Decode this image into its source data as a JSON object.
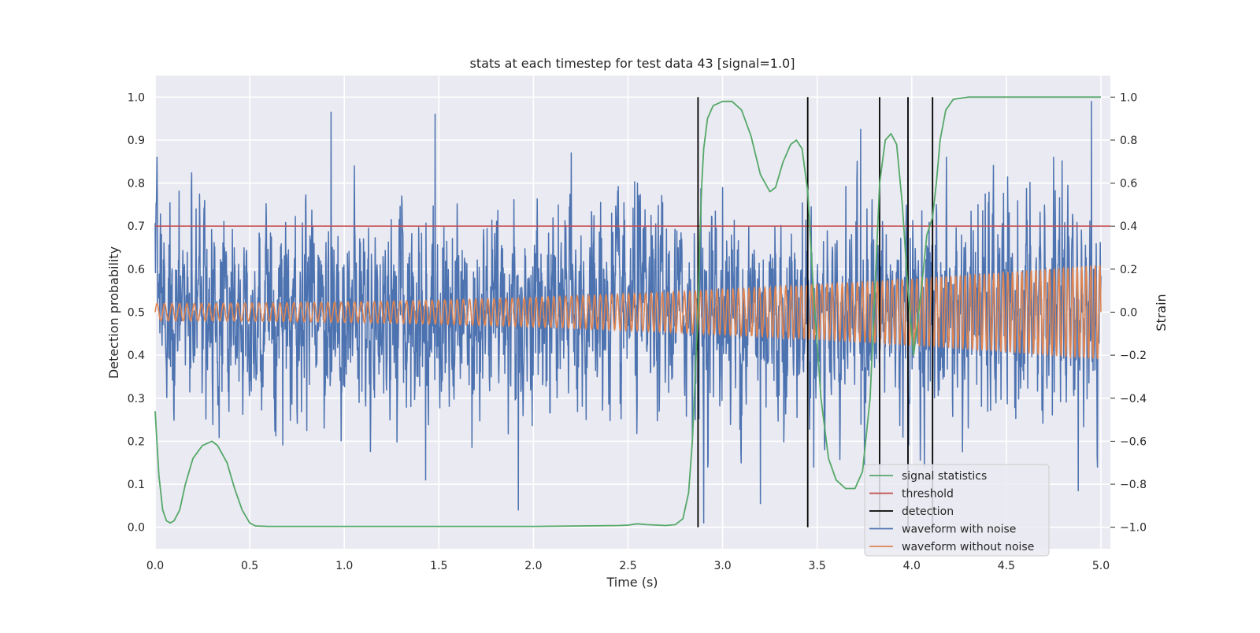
{
  "chart_data": {
    "type": "line",
    "title": "stats at each timestep for test data 43 [signal=1.0]",
    "xlabel": "Time (s)",
    "ylabel": "Detection probability",
    "y2label": "Strain",
    "xlim": [
      0.0,
      5.05
    ],
    "ylim": [
      -0.05,
      1.05
    ],
    "y2lim": [
      -1.1,
      1.1
    ],
    "x_ticks": [
      "0.0",
      "0.5",
      "1.0",
      "1.5",
      "2.0",
      "2.5",
      "3.0",
      "3.5",
      "4.0",
      "4.5",
      "5.0"
    ],
    "y_ticks": [
      "0.0",
      "0.1",
      "0.2",
      "0.3",
      "0.4",
      "0.5",
      "0.6",
      "0.7",
      "0.8",
      "0.9",
      "1.0"
    ],
    "y2_ticks": [
      "−1.0",
      "−0.8",
      "−0.6",
      "−0.4",
      "−0.2",
      "0.0",
      "0.2",
      "0.4",
      "0.6",
      "0.8",
      "1.0"
    ],
    "grid": true,
    "legend_position": "lower-right",
    "threshold": 0.7,
    "detections": [
      2.87,
      3.45,
      3.83,
      3.98,
      4.11
    ],
    "signal_statistics": {
      "x": [
        0.0,
        0.02,
        0.04,
        0.06,
        0.08,
        0.1,
        0.13,
        0.16,
        0.2,
        0.25,
        0.3,
        0.33,
        0.38,
        0.42,
        0.46,
        0.5,
        0.53,
        0.6,
        1.0,
        1.5,
        2.0,
        2.45,
        2.5,
        2.55,
        2.6,
        2.7,
        2.75,
        2.79,
        2.82,
        2.84,
        2.86,
        2.87,
        2.88,
        2.89,
        2.9,
        2.92,
        2.95,
        3.0,
        3.05,
        3.1,
        3.15,
        3.2,
        3.25,
        3.28,
        3.32,
        3.36,
        3.39,
        3.42,
        3.45,
        3.48,
        3.52,
        3.56,
        3.6,
        3.65,
        3.7,
        3.74,
        3.78,
        3.81,
        3.83,
        3.86,
        3.89,
        3.92,
        3.95,
        3.98,
        4.01,
        4.05,
        4.08,
        4.11,
        4.13,
        4.15,
        4.18,
        4.22,
        4.3,
        4.5,
        4.8,
        5.0
      ],
      "y": [
        0.27,
        0.12,
        0.04,
        0.015,
        0.01,
        0.015,
        0.04,
        0.1,
        0.16,
        0.19,
        0.2,
        0.19,
        0.15,
        0.09,
        0.04,
        0.01,
        0.003,
        0.002,
        0.002,
        0.002,
        0.002,
        0.004,
        0.005,
        0.008,
        0.006,
        0.004,
        0.006,
        0.02,
        0.08,
        0.2,
        0.4,
        0.5,
        0.68,
        0.8,
        0.88,
        0.95,
        0.98,
        0.99,
        0.99,
        0.97,
        0.91,
        0.82,
        0.78,
        0.79,
        0.85,
        0.89,
        0.9,
        0.88,
        0.78,
        0.55,
        0.3,
        0.16,
        0.11,
        0.09,
        0.09,
        0.13,
        0.3,
        0.6,
        0.8,
        0.9,
        0.915,
        0.89,
        0.75,
        0.55,
        0.4,
        0.55,
        0.68,
        0.72,
        0.8,
        0.9,
        0.97,
        0.995,
        1.0,
        1.0,
        1.0,
        1.0
      ]
    },
    "noise_spikes": [
      [
        0.45,
        0.15
      ],
      [
        1.92,
        -0.92
      ],
      [
        1.43,
        -0.78
      ],
      [
        0.93,
        0.93
      ],
      [
        1.48,
        0.92
      ],
      [
        2.55,
        0.6
      ],
      [
        3.0,
        0.58
      ],
      [
        3.2,
        -0.89
      ],
      [
        3.73,
        0.85
      ],
      [
        4.95,
        0.98
      ],
      [
        4.75,
        0.72
      ],
      [
        4.88,
        -0.83
      ],
      [
        2.9,
        -0.98
      ],
      [
        4.35,
        0.5
      ],
      [
        2.2,
        0.74
      ]
    ],
    "series": [
      {
        "name": "signal statistics",
        "color": "#55a868"
      },
      {
        "name": "threshold",
        "color": "#c44e52"
      },
      {
        "name": "detection",
        "color": "#000000"
      },
      {
        "name": "waveform with noise",
        "color": "#4c72b0"
      },
      {
        "name": "waveform without noise",
        "color": "#dd8452"
      }
    ],
    "clean_waveform": {
      "amplitude_start": 0.04,
      "amplitude_end": 0.22,
      "cycles_per_second_start": 25,
      "cycles_per_second_end": 42
    },
    "noisy_waveform": {
      "typical_range": [
        -0.6,
        0.6
      ],
      "max_range": [
        -1.0,
        1.0
      ]
    }
  }
}
